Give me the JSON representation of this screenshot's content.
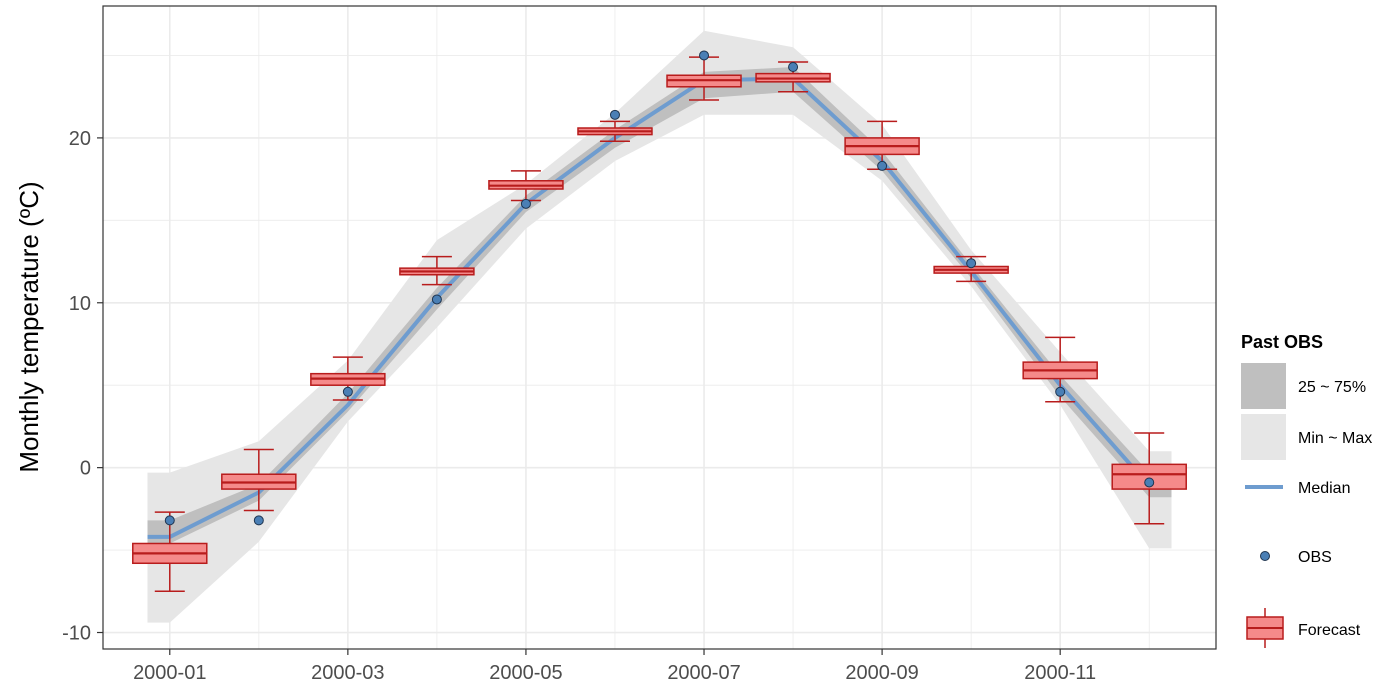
{
  "chart_data": {
    "type": "line",
    "title": "",
    "xlabel": "",
    "ylabel": "Monthly temperature (ºC)",
    "ylim": [
      -11,
      28
    ],
    "yticks": [
      -10,
      0,
      10,
      20
    ],
    "ytick_labels": [
      "-10",
      "0",
      "10",
      "20"
    ],
    "months": [
      1,
      2,
      3,
      4,
      5,
      6,
      7,
      8,
      9,
      10,
      11,
      12
    ],
    "xlim": [
      0.25,
      12.75
    ],
    "xticks": [
      1,
      3,
      5,
      7,
      9,
      11
    ],
    "xtick_labels": [
      "2000-01",
      "2000-03",
      "2000-05",
      "2000-07",
      "2000-09",
      "2000-11"
    ],
    "grid": true,
    "legend_title": "Past OBS",
    "legend_position": "right",
    "series": {
      "min_max": {
        "name": "Min ~ Max",
        "x": [
          0.75,
          1,
          2,
          3,
          4,
          5,
          6,
          7,
          8,
          9,
          10,
          11,
          12,
          12.25
        ],
        "lower": [
          -9.4,
          -9.4,
          -4.5,
          2.8,
          8.5,
          14.5,
          18.6,
          21.4,
          21.4,
          17.4,
          11.0,
          3.8,
          -4.9,
          -4.9
        ],
        "upper": [
          -0.3,
          -0.3,
          1.6,
          6.5,
          13.8,
          17.2,
          21.5,
          26.5,
          25.5,
          20.8,
          13.2,
          7.0,
          1.0,
          1.0
        ]
      },
      "q25_q75": {
        "name": "25 ~ 75%",
        "x": [
          0.75,
          1,
          2,
          3,
          4,
          5,
          6,
          7,
          8,
          9,
          10,
          11,
          12,
          12.25
        ],
        "lower": [
          -4.6,
          -4.6,
          -2.0,
          3.4,
          9.6,
          15.5,
          19.4,
          22.4,
          22.8,
          18.0,
          11.5,
          4.3,
          -1.8,
          -1.8
        ],
        "upper": [
          -3.2,
          -3.2,
          -1.0,
          4.5,
          10.9,
          16.5,
          20.5,
          24.0,
          24.3,
          19.2,
          12.3,
          5.6,
          -0.3,
          -0.3
        ]
      },
      "median": {
        "name": "Median",
        "x": [
          0.75,
          1,
          2,
          3,
          4,
          5,
          6,
          7,
          8,
          9,
          10,
          11,
          12,
          12.25
        ],
        "values": [
          -4.2,
          -4.2,
          -1.5,
          3.8,
          10.3,
          16.0,
          20.0,
          23.5,
          23.6,
          18.6,
          11.9,
          5.0,
          -1.1,
          -1.1
        ]
      },
      "obs": {
        "name": "OBS",
        "values": [
          -3.2,
          -3.2,
          4.6,
          10.2,
          16.0,
          21.4,
          25.0,
          24.3,
          18.3,
          12.4,
          4.6,
          -0.9
        ]
      },
      "forecast": {
        "name": "Forecast",
        "min": [
          -7.5,
          -2.6,
          4.1,
          11.1,
          16.2,
          19.8,
          22.3,
          22.8,
          18.1,
          11.3,
          4.0,
          -3.4
        ],
        "q1": [
          -5.8,
          -1.3,
          5.0,
          11.7,
          16.9,
          20.2,
          23.1,
          23.4,
          19.0,
          11.8,
          5.4,
          -1.3
        ],
        "median": [
          -5.2,
          -0.9,
          5.4,
          11.9,
          17.1,
          20.4,
          23.5,
          23.6,
          19.5,
          12.0,
          5.9,
          -0.4
        ],
        "q3": [
          -4.6,
          -0.4,
          5.7,
          12.1,
          17.4,
          20.6,
          23.8,
          23.9,
          20.0,
          12.2,
          6.4,
          0.2
        ],
        "max": [
          -2.7,
          1.1,
          6.7,
          12.8,
          18.0,
          21.0,
          24.9,
          24.6,
          21.0,
          12.8,
          7.9,
          2.1
        ]
      }
    }
  },
  "colors": {
    "min_max_fill": "#e6e6e6",
    "q_fill": "#bfbfbf",
    "median_line": "#6e9ccf",
    "obs_fill": "#4a7fb5",
    "obs_stroke": "#1f3550",
    "box_fill": "#f58a8a",
    "box_stroke": "#b81c1c",
    "grid": "#ebebeb",
    "panel_border": "#333333"
  }
}
